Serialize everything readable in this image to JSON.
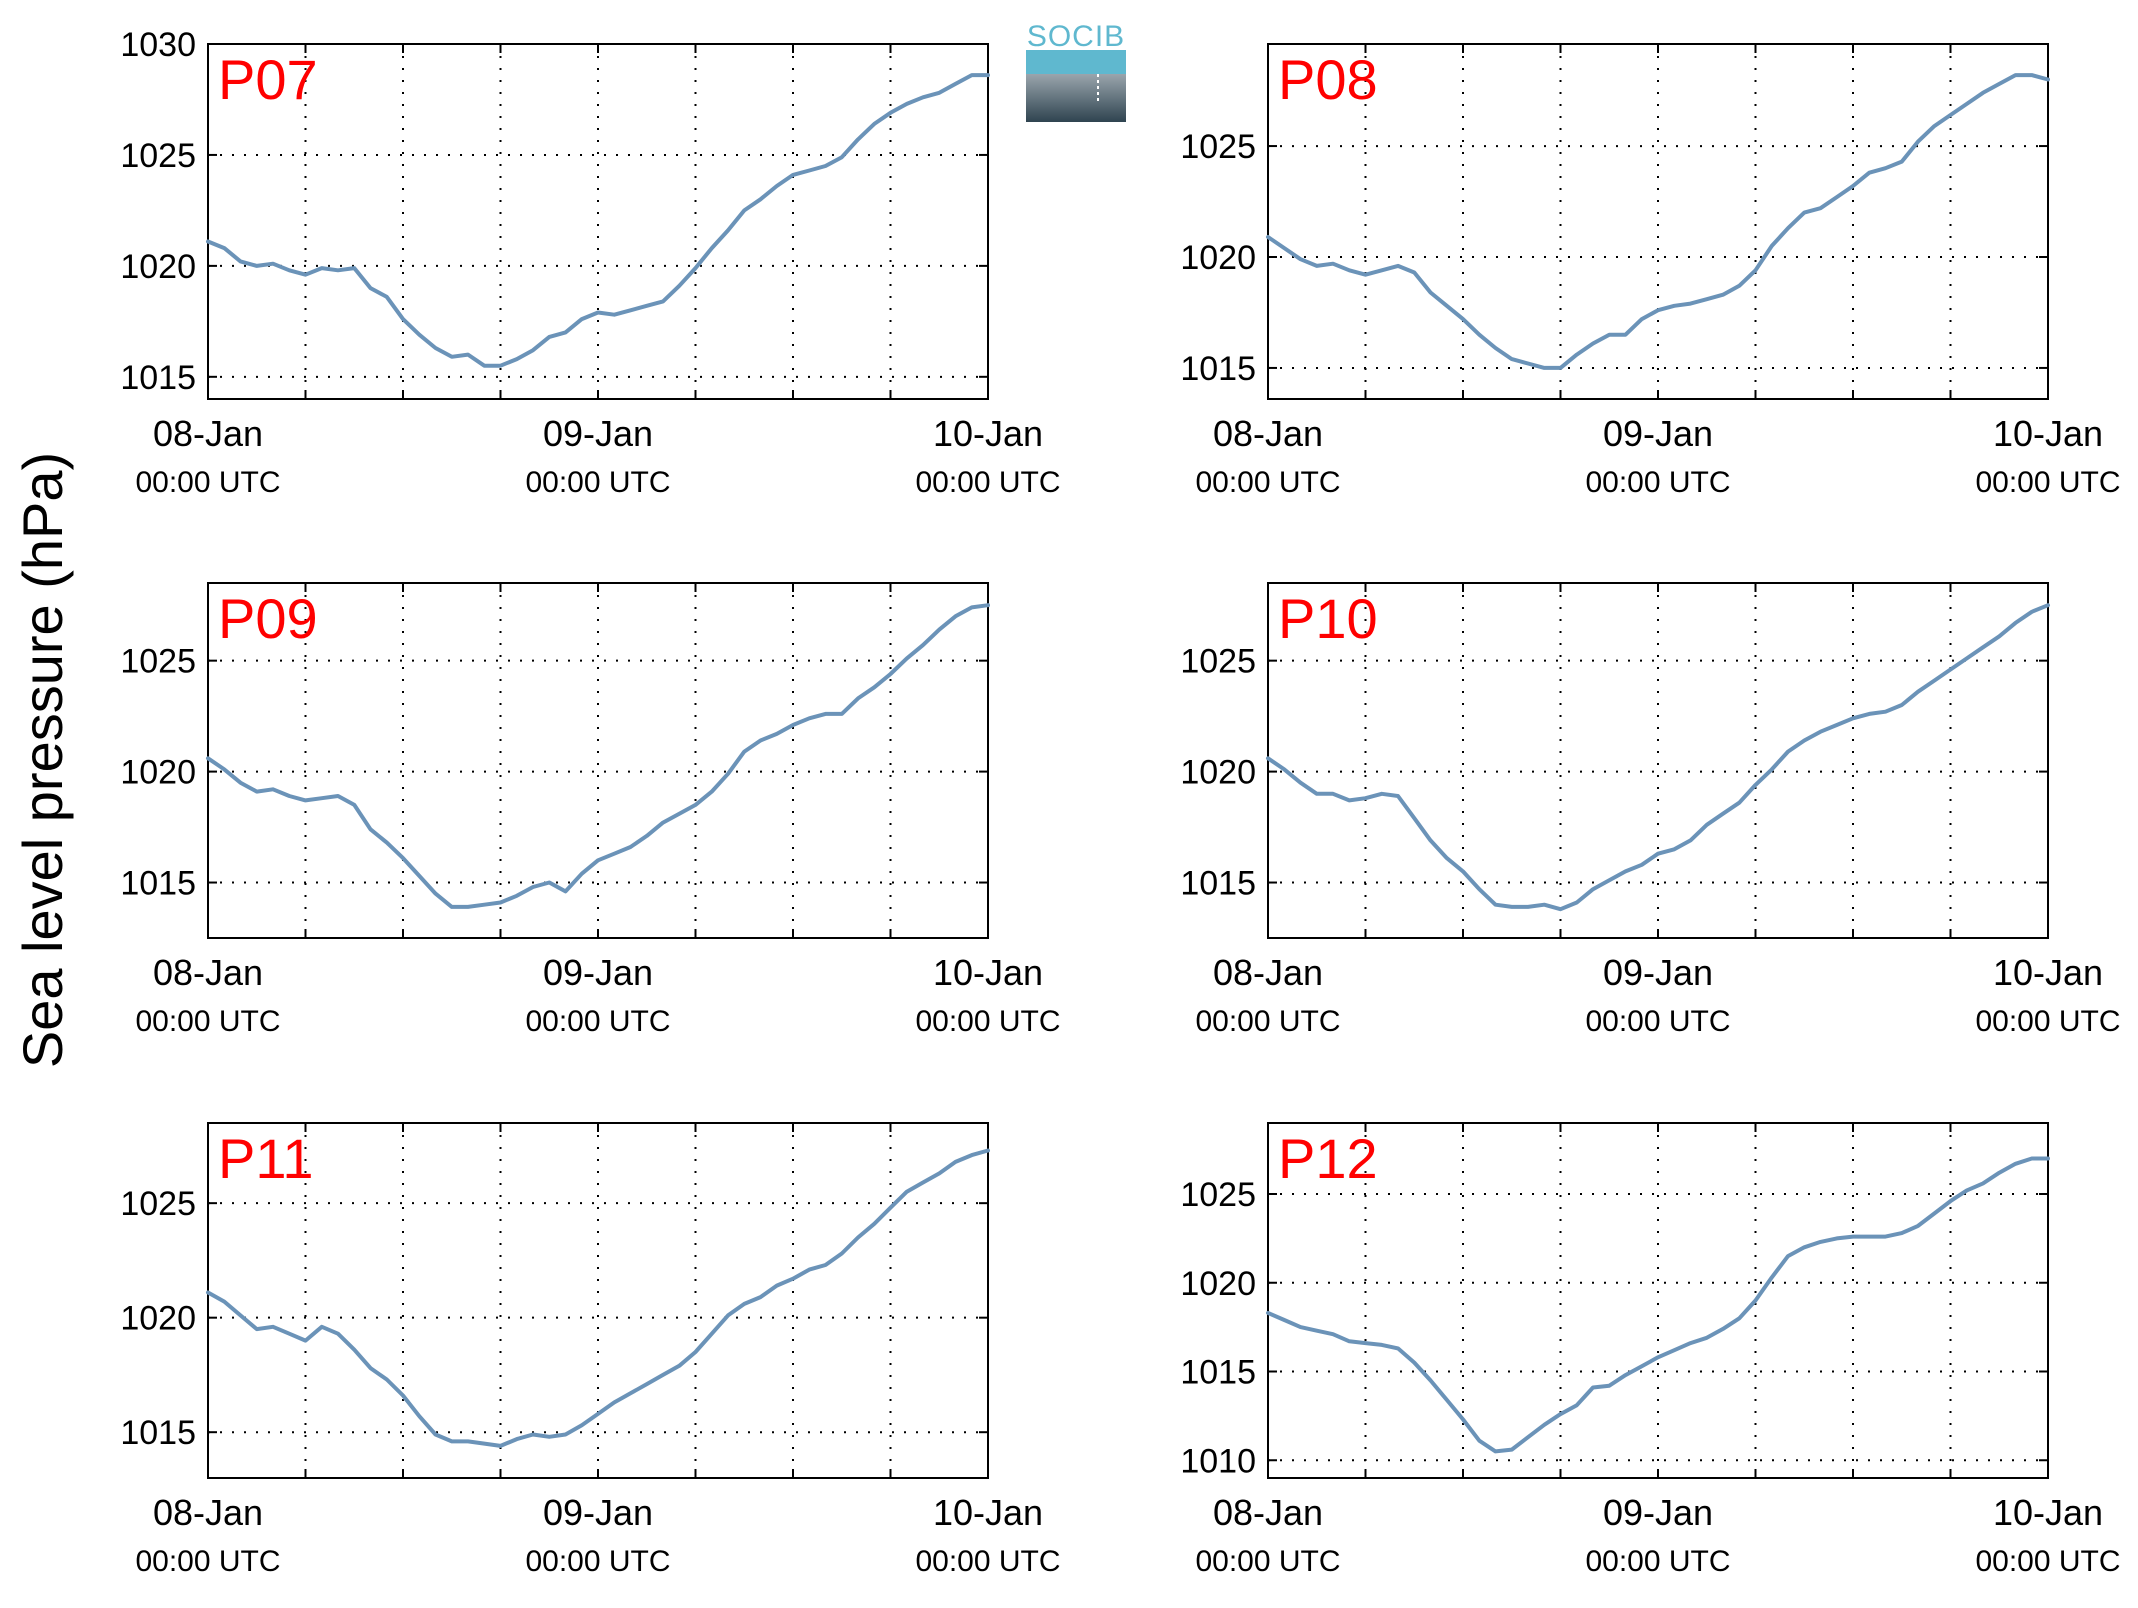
{
  "figure": {
    "ylabel": "Sea level pressure (hPa)",
    "logo_text": "SOCIB",
    "colors": {
      "line": "#6b93b8",
      "station_label": "#ff0000",
      "axis": "#000000",
      "grid": "#000000",
      "logo_top": "#5fb8cf",
      "logo_bottom": "#2f4450"
    }
  },
  "chart_data": [
    {
      "type": "line",
      "title": "P07",
      "x_ticks": [
        "08-Jan",
        "09-Jan",
        "10-Jan"
      ],
      "x_ticks_sub": [
        "00:00 UTC",
        "00:00 UTC",
        "00:00 UTC"
      ],
      "xlim": [
        0,
        48
      ],
      "ylim": [
        1014,
        1030
      ],
      "y_ticks": [
        1015,
        1020,
        1025,
        1030
      ],
      "grid": true,
      "x": [
        0,
        1,
        2,
        3,
        4,
        5,
        6,
        7,
        8,
        9,
        10,
        11,
        12,
        13,
        14,
        15,
        16,
        17,
        18,
        19,
        20,
        21,
        22,
        23,
        24,
        25,
        26,
        27,
        28,
        29,
        30,
        31,
        32,
        33,
        34,
        35,
        36,
        37,
        38,
        39,
        40,
        41,
        42,
        43,
        44,
        45,
        46,
        47,
        48
      ],
      "y": [
        1021.1,
        1020.8,
        1020.2,
        1020.0,
        1020.1,
        1019.8,
        1019.6,
        1019.9,
        1019.8,
        1019.9,
        1019.0,
        1018.6,
        1017.6,
        1016.9,
        1016.3,
        1015.9,
        1016.0,
        1015.5,
        1015.5,
        1015.8,
        1016.2,
        1016.8,
        1017.0,
        1017.6,
        1017.9,
        1017.8,
        1018.0,
        1018.2,
        1018.4,
        1019.1,
        1019.9,
        1020.8,
        1021.6,
        1022.5,
        1023.0,
        1023.6,
        1024.1,
        1024.3,
        1024.5,
        1024.9,
        1025.7,
        1026.4,
        1026.9,
        1027.3,
        1027.6,
        1027.8,
        1028.2,
        1028.6,
        1028.6
      ]
    },
    {
      "type": "line",
      "title": "P08",
      "x_ticks": [
        "08-Jan",
        "09-Jan",
        "10-Jan"
      ],
      "x_ticks_sub": [
        "00:00 UTC",
        "00:00 UTC",
        "00:00 UTC"
      ],
      "xlim": [
        0,
        48
      ],
      "ylim": [
        1013.6,
        1029.6
      ],
      "y_ticks": [
        1015,
        1020,
        1025
      ],
      "grid": true,
      "x": [
        0,
        1,
        2,
        3,
        4,
        5,
        6,
        7,
        8,
        9,
        10,
        11,
        12,
        13,
        14,
        15,
        16,
        17,
        18,
        19,
        20,
        21,
        22,
        23,
        24,
        25,
        26,
        27,
        28,
        29,
        30,
        31,
        32,
        33,
        34,
        35,
        36,
        37,
        38,
        39,
        40,
        41,
        42,
        43,
        44,
        45,
        46,
        47,
        48
      ],
      "y": [
        1020.9,
        1020.4,
        1019.9,
        1019.6,
        1019.7,
        1019.4,
        1019.2,
        1019.4,
        1019.6,
        1019.3,
        1018.4,
        1017.8,
        1017.2,
        1016.5,
        1015.9,
        1015.4,
        1015.2,
        1015.0,
        1015.0,
        1015.6,
        1016.1,
        1016.5,
        1016.5,
        1017.2,
        1017.6,
        1017.8,
        1017.9,
        1018.1,
        1018.3,
        1018.7,
        1019.4,
        1020.5,
        1021.3,
        1022.0,
        1022.2,
        1022.7,
        1023.2,
        1023.8,
        1024.0,
        1024.3,
        1025.2,
        1025.9,
        1026.4,
        1026.9,
        1027.4,
        1027.8,
        1028.2,
        1028.2,
        1028.0
      ]
    },
    {
      "type": "line",
      "title": "P09",
      "x_ticks": [
        "08-Jan",
        "09-Jan",
        "10-Jan"
      ],
      "x_ticks_sub": [
        "00:00 UTC",
        "00:00 UTC",
        "00:00 UTC"
      ],
      "xlim": [
        0,
        48
      ],
      "ylim": [
        1012.5,
        1028.5
      ],
      "y_ticks": [
        1015,
        1020,
        1025
      ],
      "grid": true,
      "x": [
        0,
        1,
        2,
        3,
        4,
        5,
        6,
        7,
        8,
        9,
        10,
        11,
        12,
        13,
        14,
        15,
        16,
        17,
        18,
        19,
        20,
        21,
        22,
        23,
        24,
        25,
        26,
        27,
        28,
        29,
        30,
        31,
        32,
        33,
        34,
        35,
        36,
        37,
        38,
        39,
        40,
        41,
        42,
        43,
        44,
        45,
        46,
        47,
        48
      ],
      "y": [
        1020.6,
        1020.1,
        1019.5,
        1019.1,
        1019.2,
        1018.9,
        1018.7,
        1018.8,
        1018.9,
        1018.5,
        1017.4,
        1016.8,
        1016.1,
        1015.3,
        1014.5,
        1013.9,
        1013.9,
        1014.0,
        1014.1,
        1014.4,
        1014.8,
        1015.0,
        1014.6,
        1015.4,
        1016.0,
        1016.3,
        1016.6,
        1017.1,
        1017.7,
        1018.1,
        1018.5,
        1019.1,
        1019.9,
        1020.9,
        1021.4,
        1021.7,
        1022.1,
        1022.4,
        1022.6,
        1022.6,
        1023.3,
        1023.8,
        1024.4,
        1025.1,
        1025.7,
        1026.4,
        1027.0,
        1027.4,
        1027.5
      ]
    },
    {
      "type": "line",
      "title": "P10",
      "x_ticks": [
        "08-Jan",
        "09-Jan",
        "10-Jan"
      ],
      "x_ticks_sub": [
        "00:00 UTC",
        "00:00 UTC",
        "00:00 UTC"
      ],
      "xlim": [
        0,
        48
      ],
      "ylim": [
        1012.5,
        1028.5
      ],
      "y_ticks": [
        1015,
        1020,
        1025
      ],
      "grid": true,
      "x": [
        0,
        1,
        2,
        3,
        4,
        5,
        6,
        7,
        8,
        9,
        10,
        11,
        12,
        13,
        14,
        15,
        16,
        17,
        18,
        19,
        20,
        21,
        22,
        23,
        24,
        25,
        26,
        27,
        28,
        29,
        30,
        31,
        32,
        33,
        34,
        35,
        36,
        37,
        38,
        39,
        40,
        41,
        42,
        43,
        44,
        45,
        46,
        47,
        48
      ],
      "y": [
        1020.6,
        1020.1,
        1019.5,
        1019.0,
        1019.0,
        1018.7,
        1018.8,
        1019.0,
        1018.9,
        1017.9,
        1016.9,
        1016.1,
        1015.5,
        1014.7,
        1014.0,
        1013.9,
        1013.9,
        1014.0,
        1013.8,
        1014.1,
        1014.7,
        1015.1,
        1015.5,
        1015.8,
        1016.3,
        1016.5,
        1016.9,
        1017.6,
        1018.1,
        1018.6,
        1019.4,
        1020.1,
        1020.9,
        1021.4,
        1021.8,
        1022.1,
        1022.4,
        1022.6,
        1022.7,
        1023.0,
        1023.6,
        1024.1,
        1024.6,
        1025.1,
        1025.6,
        1026.1,
        1026.7,
        1027.2,
        1027.5
      ]
    },
    {
      "type": "line",
      "title": "P11",
      "x_ticks": [
        "08-Jan",
        "09-Jan",
        "10-Jan"
      ],
      "x_ticks_sub": [
        "00:00 UTC",
        "00:00 UTC",
        "00:00 UTC"
      ],
      "xlim": [
        0,
        48
      ],
      "ylim": [
        1013,
        1028.5
      ],
      "y_ticks": [
        1015,
        1020,
        1025
      ],
      "grid": true,
      "x": [
        0,
        1,
        2,
        3,
        4,
        5,
        6,
        7,
        8,
        9,
        10,
        11,
        12,
        13,
        14,
        15,
        16,
        17,
        18,
        19,
        20,
        21,
        22,
        23,
        24,
        25,
        26,
        27,
        28,
        29,
        30,
        31,
        32,
        33,
        34,
        35,
        36,
        37,
        38,
        39,
        40,
        41,
        42,
        43,
        44,
        45,
        46,
        47,
        48
      ],
      "y": [
        1021.1,
        1020.7,
        1020.1,
        1019.5,
        1019.6,
        1019.3,
        1019.0,
        1019.6,
        1019.3,
        1018.6,
        1017.8,
        1017.3,
        1016.6,
        1015.7,
        1014.9,
        1014.6,
        1014.6,
        1014.5,
        1014.4,
        1014.7,
        1014.9,
        1014.8,
        1014.9,
        1015.3,
        1015.8,
        1016.3,
        1016.7,
        1017.1,
        1017.5,
        1017.9,
        1018.5,
        1019.3,
        1020.1,
        1020.6,
        1020.9,
        1021.4,
        1021.7,
        1022.1,
        1022.3,
        1022.8,
        1023.5,
        1024.1,
        1024.8,
        1025.5,
        1025.9,
        1026.3,
        1026.8,
        1027.1,
        1027.3
      ]
    },
    {
      "type": "line",
      "title": "P12",
      "x_ticks": [
        "08-Jan",
        "09-Jan",
        "10-Jan"
      ],
      "x_ticks_sub": [
        "00:00 UTC",
        "00:00 UTC",
        "00:00 UTC"
      ],
      "xlim": [
        0,
        48
      ],
      "ylim": [
        1009,
        1029
      ],
      "y_ticks": [
        1010,
        1015,
        1020,
        1025
      ],
      "grid": true,
      "x": [
        0,
        1,
        2,
        3,
        4,
        5,
        6,
        7,
        8,
        9,
        10,
        11,
        12,
        13,
        14,
        15,
        16,
        17,
        18,
        19,
        20,
        21,
        22,
        23,
        24,
        25,
        26,
        27,
        28,
        29,
        30,
        31,
        32,
        33,
        34,
        35,
        36,
        37,
        38,
        39,
        40,
        41,
        42,
        43,
        44,
        45,
        46,
        47,
        48
      ],
      "y": [
        1018.3,
        1017.9,
        1017.5,
        1017.3,
        1017.1,
        1016.7,
        1016.6,
        1016.5,
        1016.3,
        1015.5,
        1014.5,
        1013.4,
        1012.3,
        1011.1,
        1010.5,
        1010.6,
        1011.3,
        1012.0,
        1012.6,
        1013.1,
        1014.1,
        1014.2,
        1014.8,
        1015.3,
        1015.8,
        1016.2,
        1016.6,
        1016.9,
        1017.4,
        1018.0,
        1019.0,
        1020.3,
        1021.5,
        1022.0,
        1022.3,
        1022.5,
        1022.6,
        1022.6,
        1022.6,
        1022.8,
        1023.2,
        1023.9,
        1024.6,
        1025.2,
        1025.6,
        1026.2,
        1026.7,
        1027.0,
        1027.0
      ]
    }
  ]
}
